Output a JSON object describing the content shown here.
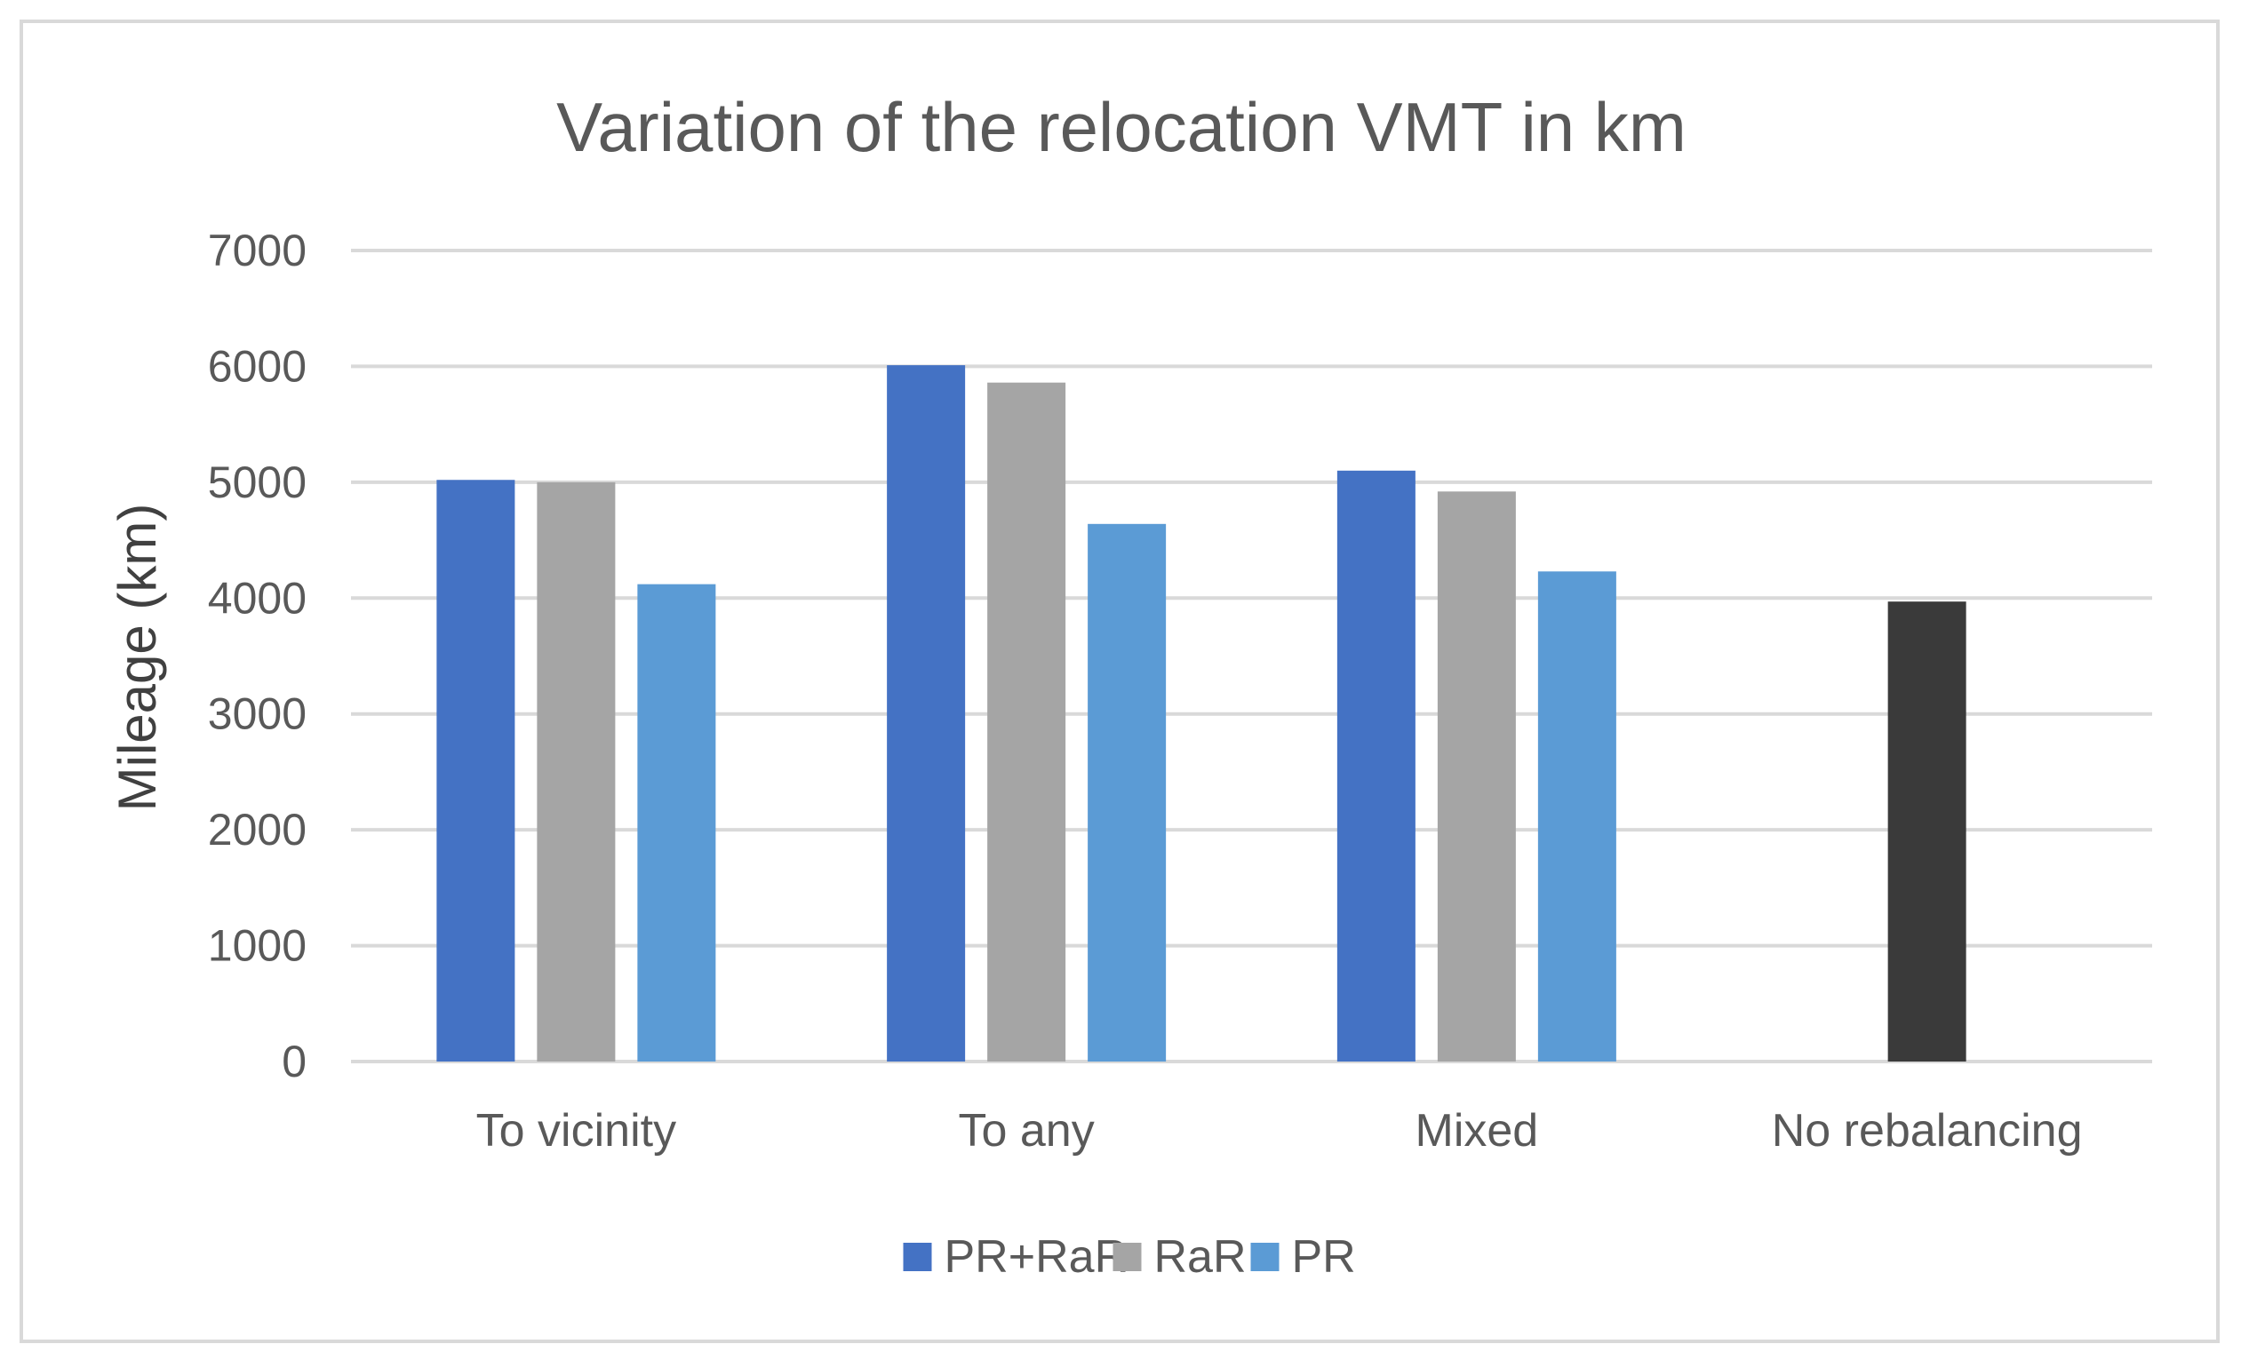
{
  "chart_data": {
    "type": "bar",
    "title": "Variation of the relocation VMT in km",
    "xlabel": "",
    "ylabel": "Mileage (km)",
    "ylim": [
      0,
      7000
    ],
    "yticks": [
      0,
      1000,
      2000,
      3000,
      4000,
      5000,
      6000,
      7000
    ],
    "grid": true,
    "legend_position": "bottom",
    "categories": [
      "To vicinity",
      "To any",
      "Mixed",
      "No rebalancing"
    ],
    "series": [
      {
        "name": "PR+RaR",
        "color": "#4472c4",
        "values": [
          5020,
          6010,
          5100,
          null
        ],
        "show_in_legend": true
      },
      {
        "name": "RaR",
        "color": "#a5a5a5",
        "values": [
          5000,
          5860,
          4920,
          null
        ],
        "show_in_legend": true
      },
      {
        "name": "PR",
        "color": "#5b9bd5",
        "values": [
          4120,
          4640,
          4230,
          null
        ],
        "show_in_legend": true
      },
      {
        "name": "No rebalancing",
        "color": "#3a3a3a",
        "values": [
          null,
          null,
          null,
          3970
        ],
        "show_in_legend": false
      }
    ]
  }
}
